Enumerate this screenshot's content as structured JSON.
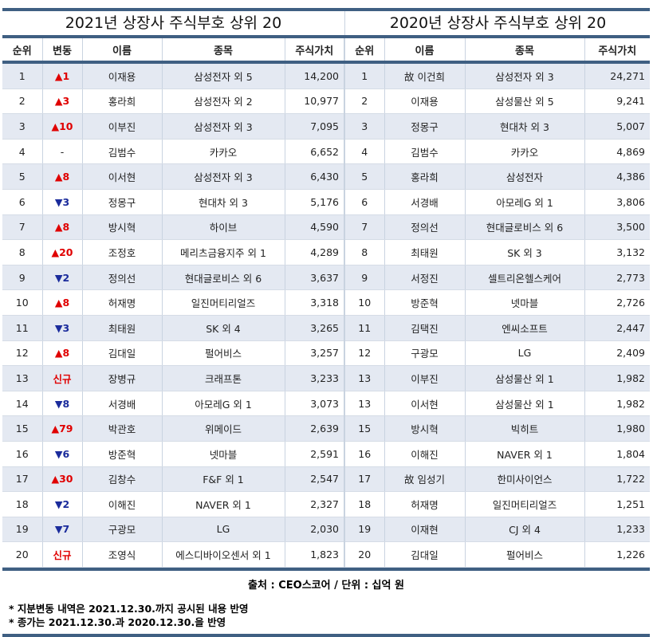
{
  "titles": {
    "left": "2021년 상장사 주식부호 상위 20",
    "right": "2020년 상장사 주식부호 상위 20"
  },
  "headers": {
    "rank": "순위",
    "change": "변동",
    "name": "이름",
    "stock": "종목",
    "value": "주식가치"
  },
  "rows2021": [
    {
      "rank": "1",
      "change": "▲1",
      "dir": "up",
      "name": "이재용",
      "stock": "삼성전자 외 5",
      "value": "14,200"
    },
    {
      "rank": "2",
      "change": "▲3",
      "dir": "up",
      "name": "홍라희",
      "stock": "삼성전자 외 2",
      "value": "10,977"
    },
    {
      "rank": "3",
      "change": "▲10",
      "dir": "up",
      "name": "이부진",
      "stock": "삼성전자 외 3",
      "value": "7,095"
    },
    {
      "rank": "4",
      "change": "-",
      "dir": "none",
      "name": "김범수",
      "stock": "카카오",
      "value": "6,652"
    },
    {
      "rank": "5",
      "change": "▲8",
      "dir": "up",
      "name": "이서현",
      "stock": "삼성전자 외 3",
      "value": "6,430"
    },
    {
      "rank": "6",
      "change": "▼3",
      "dir": "down",
      "name": "정몽구",
      "stock": "현대차 외 3",
      "value": "5,176"
    },
    {
      "rank": "7",
      "change": "▲8",
      "dir": "up",
      "name": "방시혁",
      "stock": "하이브",
      "value": "4,590"
    },
    {
      "rank": "8",
      "change": "▲20",
      "dir": "up",
      "name": "조정호",
      "stock": "메리츠금융지주 외 1",
      "value": "4,289"
    },
    {
      "rank": "9",
      "change": "▼2",
      "dir": "down",
      "name": "정의선",
      "stock": "현대글로비스 외 6",
      "value": "3,637"
    },
    {
      "rank": "10",
      "change": "▲8",
      "dir": "up",
      "name": "허재명",
      "stock": "일진머티리얼즈",
      "value": "3,318"
    },
    {
      "rank": "11",
      "change": "▼3",
      "dir": "down",
      "name": "최태원",
      "stock": "SK 외 4",
      "value": "3,265"
    },
    {
      "rank": "12",
      "change": "▲8",
      "dir": "up",
      "name": "김대일",
      "stock": "펄어비스",
      "value": "3,257"
    },
    {
      "rank": "13",
      "change": "신규",
      "dir": "new",
      "name": "장병규",
      "stock": "크래프톤",
      "value": "3,233"
    },
    {
      "rank": "14",
      "change": "▼8",
      "dir": "down",
      "name": "서경배",
      "stock": "아모레G 외 1",
      "value": "3,073"
    },
    {
      "rank": "15",
      "change": "▲79",
      "dir": "up",
      "name": "박관호",
      "stock": "위메이드",
      "value": "2,639"
    },
    {
      "rank": "16",
      "change": "▼6",
      "dir": "down",
      "name": "방준혁",
      "stock": "넷마블",
      "value": "2,591"
    },
    {
      "rank": "17",
      "change": "▲30",
      "dir": "up",
      "name": "김창수",
      "stock": "F&F 외 1",
      "value": "2,547"
    },
    {
      "rank": "18",
      "change": "▼2",
      "dir": "down",
      "name": "이해진",
      "stock": "NAVER 외 1",
      "value": "2,327"
    },
    {
      "rank": "19",
      "change": "▼7",
      "dir": "down",
      "name": "구광모",
      "stock": "LG",
      "value": "2,030"
    },
    {
      "rank": "20",
      "change": "신규",
      "dir": "new",
      "name": "조영식",
      "stock": "에스디바이오센서 외 1",
      "value": "1,823"
    }
  ],
  "rows2020": [
    {
      "rank": "1",
      "name": "故 이건희",
      "stock": "삼성전자 외 3",
      "value": "24,271"
    },
    {
      "rank": "2",
      "name": "이재용",
      "stock": "삼성물산 외 5",
      "value": "9,241"
    },
    {
      "rank": "3",
      "name": "정몽구",
      "stock": "현대차 외 3",
      "value": "5,007"
    },
    {
      "rank": "4",
      "name": "김범수",
      "stock": "카카오",
      "value": "4,869"
    },
    {
      "rank": "5",
      "name": "홍라희",
      "stock": "삼성전자",
      "value": "4,386"
    },
    {
      "rank": "6",
      "name": "서경배",
      "stock": "아모레G 외 1",
      "value": "3,806"
    },
    {
      "rank": "7",
      "name": "정의선",
      "stock": "현대글로비스 외 6",
      "value": "3,500"
    },
    {
      "rank": "8",
      "name": "최태원",
      "stock": "SK 외 3",
      "value": "3,132"
    },
    {
      "rank": "9",
      "name": "서정진",
      "stock": "셀트리온헬스케어",
      "value": "2,773"
    },
    {
      "rank": "10",
      "name": "방준혁",
      "stock": "넷마블",
      "value": "2,726"
    },
    {
      "rank": "11",
      "name": "김택진",
      "stock": "엔씨소프트",
      "value": "2,447"
    },
    {
      "rank": "12",
      "name": "구광모",
      "stock": "LG",
      "value": "2,409"
    },
    {
      "rank": "13",
      "name": "이부진",
      "stock": "삼성물산 외 1",
      "value": "1,982"
    },
    {
      "rank": "13",
      "name": "이서현",
      "stock": "삼성물산 외 1",
      "value": "1,982"
    },
    {
      "rank": "15",
      "name": "방시혁",
      "stock": "빅히트",
      "value": "1,980"
    },
    {
      "rank": "16",
      "name": "이해진",
      "stock": "NAVER 외 1",
      "value": "1,804"
    },
    {
      "rank": "17",
      "name": "故 임성기",
      "stock": "한미사이언스",
      "value": "1,722"
    },
    {
      "rank": "18",
      "name": "허재명",
      "stock": "일진머티리얼즈",
      "value": "1,251"
    },
    {
      "rank": "19",
      "name": "이재현",
      "stock": "CJ 외 4",
      "value": "1,233"
    },
    {
      "rank": "20",
      "name": "김대일",
      "stock": "펄어비스",
      "value": "1,226"
    }
  ],
  "source": "출처 : CEO스코어 / 단위 : 십억 원",
  "notes": [
    "* 지분변동 내역은 2021.12.30.까지 공시된 내용 반영",
    "* 종가는 2021.12.30.과 2020.12.30.을 반영"
  ],
  "colors": {
    "border": "#3f5f82",
    "shade": "#e4e9f2",
    "up": "#e00000",
    "down": "#1b2c9c"
  }
}
